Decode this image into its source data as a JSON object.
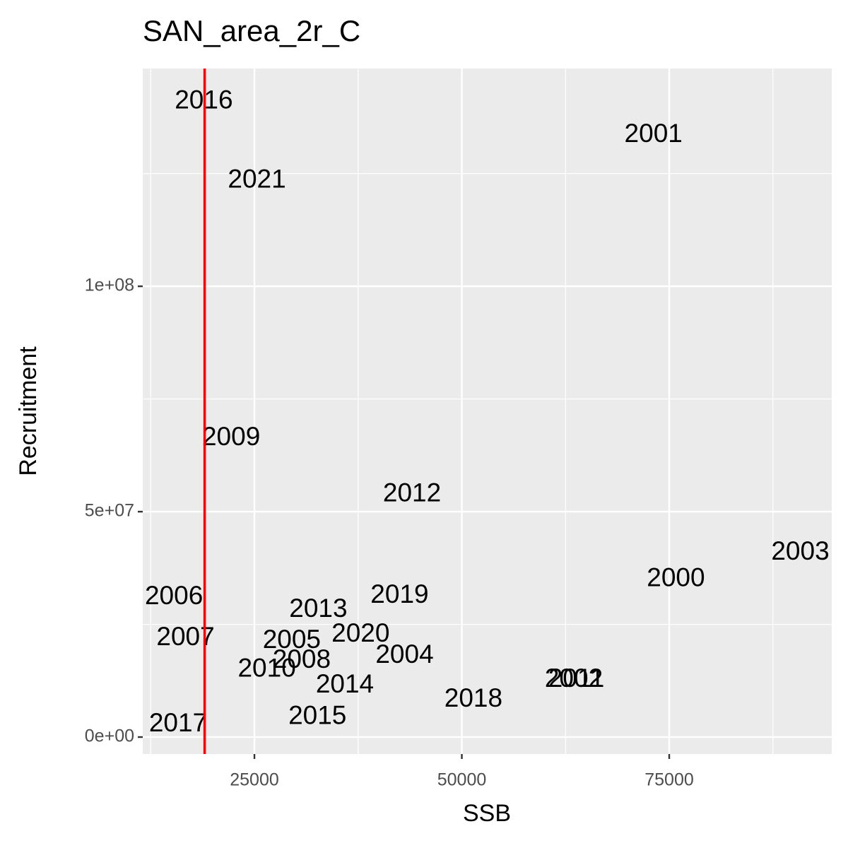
{
  "chart_data": {
    "type": "scatter",
    "title": "SAN_area_2r_C",
    "x_label": "SSB",
    "y_label": "Recruitment",
    "labels": [
      "2016",
      "2001",
      "2021",
      "2009",
      "2012",
      "2003",
      "2000",
      "2006",
      "2019",
      "2013",
      "2007",
      "2020",
      "2005",
      "2004",
      "2008",
      "2010",
      "2014",
      "2002",
      "2011",
      "2018",
      "2015",
      "2017"
    ],
    "x": [
      18900,
      73100,
      25300,
      22200,
      44000,
      90800,
      75800,
      15300,
      42500,
      32700,
      16700,
      37800,
      29500,
      43100,
      30700,
      26500,
      35900,
      63500,
      63800,
      51400,
      32600,
      15800
    ],
    "values": [
      141000000,
      133500000,
      123400000,
      66300000,
      53800000,
      40900000,
      35000000,
      31000000,
      31300000,
      28200000,
      21900000,
      22700000,
      21300000,
      18000000,
      16900000,
      14900000,
      11400000,
      12700000,
      12700000,
      8300000,
      4400000,
      2800000
    ],
    "label_color": "#000000",
    "vline": {
      "x": 19000,
      "color": "#ff0000"
    },
    "xlim": [
      11540,
      94590
    ],
    "ylim": [
      -3760000,
      148300000
    ],
    "xticks": [
      25000,
      50000,
      75000
    ],
    "yticks": [
      {
        "value": 0,
        "label": "0e+00"
      },
      {
        "value": 50000000,
        "label": "5e+07"
      },
      {
        "value": 100000000,
        "label": "1e+08"
      }
    ],
    "grid": true,
    "minor_grid": true
  }
}
